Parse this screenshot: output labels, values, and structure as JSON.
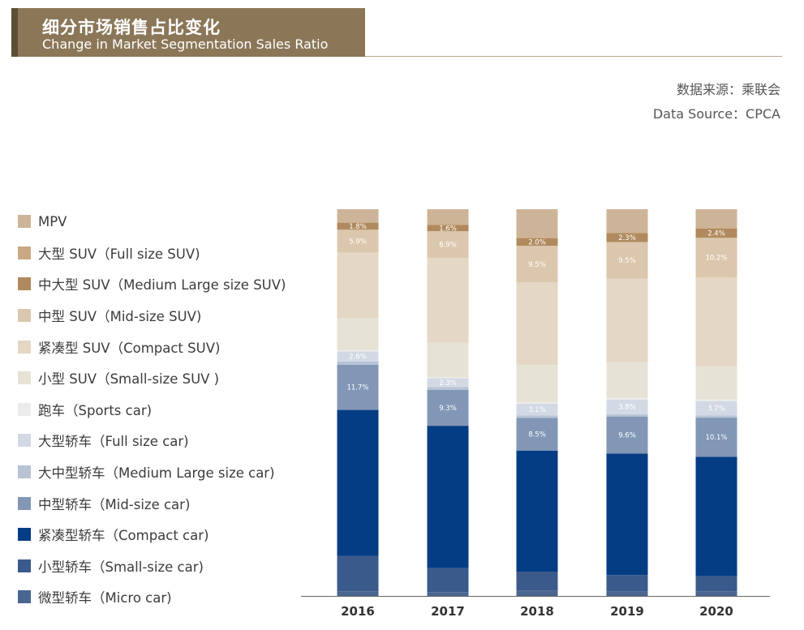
{
  "header": {
    "title_cn": "细分市场销售占比变化",
    "title_en": "Change in Market Segmentation Sales Ratio"
  },
  "source": {
    "line_cn": "数据来源：乘联会",
    "line_en": "Data Source：CPCA"
  },
  "chart_data": {
    "type": "bar",
    "stacked": true,
    "normalized": true,
    "title": "细分市场销售占比变化 / Change in Market Segmentation Sales Ratio",
    "xlabel": "",
    "ylabel": "",
    "ylim": [
      0,
      100
    ],
    "categories": [
      "2016",
      "2017",
      "2018",
      "2019",
      "2020"
    ],
    "legend_position": "left",
    "series": [
      {
        "name": "微型轿车（Micro car)",
        "color": "#4a6690",
        "values": [
          1.2,
          1.0,
          1.4,
          1.1,
          1.2
        ]
      },
      {
        "name": "小型轿车（Small-size car)",
        "color": "#3b5a8c",
        "values": [
          9.1,
          6.2,
          4.9,
          4.3,
          3.9
        ]
      },
      {
        "name": "紧凑型轿车（Compact car)",
        "color": "#053d84",
        "values": [
          37.8,
          36.8,
          31.4,
          31.4,
          30.9
        ]
      },
      {
        "name": "中型轿车（Mid-size car)",
        "color": "#8197b5",
        "values": [
          11.7,
          9.3,
          8.5,
          9.6,
          10.1
        ]
      },
      {
        "name": "大中型轿车（Medium Large size car)",
        "color": "#b8c3d5",
        "values": [
          0.8,
          0.7,
          0.6,
          0.6,
          0.6
        ]
      },
      {
        "name": "大型轿车（Full size car)",
        "color": "#d3d9e4",
        "values": [
          2.6,
          2.3,
          3.1,
          3.8,
          3.7
        ]
      },
      {
        "name": "跑车（Sports car)",
        "color": "#ececec",
        "values": [
          0.3,
          0.3,
          0.3,
          0.4,
          0.4
        ]
      },
      {
        "name": "小型 SUV（Small-size SUV )",
        "color": "#e6e2d6",
        "values": [
          8.4,
          8.9,
          9.7,
          9.2,
          8.6
        ]
      },
      {
        "name": "紧凑型 SUV（Compact SUV)",
        "color": "#e4d7c5",
        "values": [
          16.9,
          21.9,
          21.4,
          21.6,
          23.0
        ]
      },
      {
        "name": "中型 SUV（Mid-size SUV)",
        "color": "#dbc7ad",
        "values": [
          5.9,
          6.9,
          9.5,
          9.5,
          10.2
        ]
      },
      {
        "name": "中大型 SUV（Medium Large size SUV)",
        "color": "#b08a5e",
        "values": [
          1.8,
          1.6,
          2.0,
          2.3,
          2.4
        ]
      },
      {
        "name": "大型 SUV（Full size SUV)",
        "color": "#c9a884",
        "values": [
          0.3,
          0.3,
          0.3,
          0.3,
          0.3
        ]
      },
      {
        "name": "MPV",
        "color": "#cdb498",
        "values": [
          3.2,
          3.8,
          7.2,
          5.9,
          4.7
        ]
      }
    ],
    "data_labels": {
      "中型轿车（Mid-size car)": [
        "11.7%",
        "9.3%",
        "8.5%",
        "9.6%",
        "10.1%"
      ],
      "大型轿车（Full size car)": [
        "2.6%",
        "2.3%",
        "3.1%",
        "3.8%",
        "3.7%"
      ],
      "中型 SUV（Mid-size SUV)": [
        "5.9%",
        "6.9%",
        "9.5%",
        "9.5%",
        "10.2%"
      ],
      "中大型 SUV（Medium Large size SUV)": [
        "1.8%",
        "1.6%",
        "2.0%",
        "2.3%",
        "2.4%"
      ]
    }
  }
}
